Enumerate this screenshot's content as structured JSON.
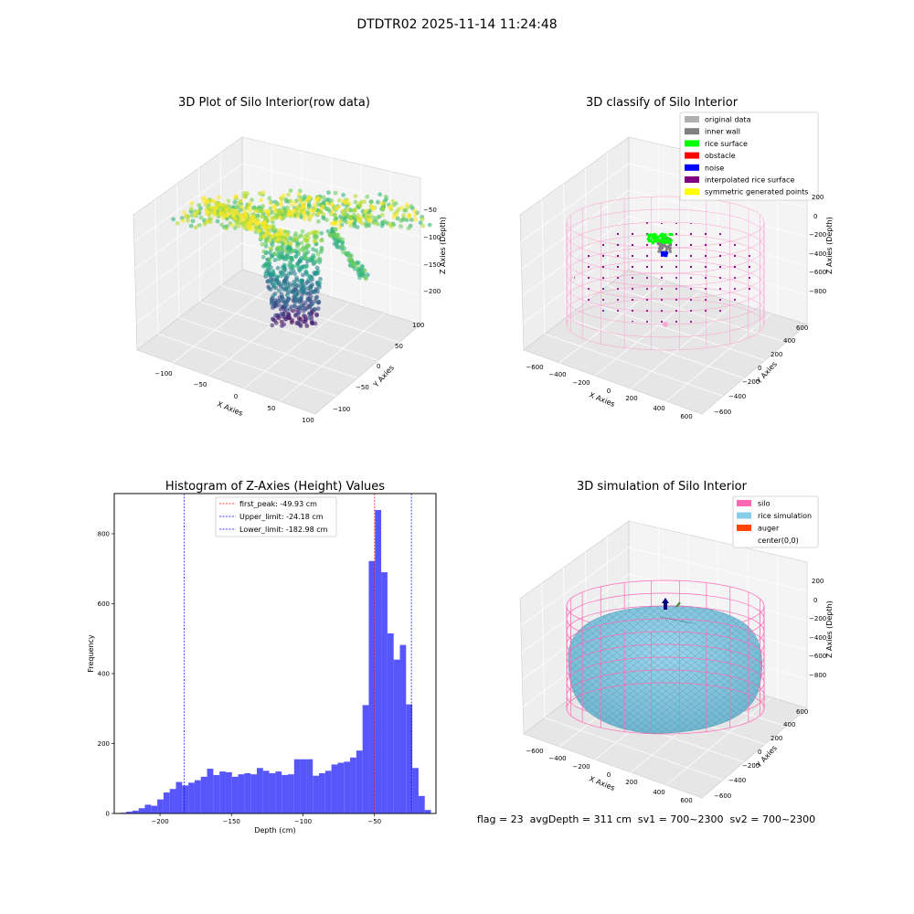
{
  "figure": {
    "title": "DTDTR02 2025-11-14 11:24:48",
    "status_line": "flag = 23  avgDepth = 311 cm  sv1 = 700~2300  sv2 = 700~2300"
  },
  "colors": {
    "viridis_low": "#440154",
    "viridis_mid": "#21918c",
    "viridis_high": "#fde725",
    "hist_bar": "#4d4dfa",
    "peak_line": "#ff0000",
    "limit_line": "#0000ff",
    "silo_pink": "#ff69b4",
    "rice_blue": "#87ceeb",
    "auger_orange": "#ff4500",
    "pane_gray": "#f2f2f2"
  },
  "chart_data": [
    {
      "type": "scatter",
      "title": "3D Plot of Silo Interior(row data)",
      "xlabel": "X Axies",
      "ylabel": "Y Axies",
      "zlabel": "Z Axies (Depth)",
      "xticks": [
        "−100",
        "−50",
        "0",
        "50",
        "100"
      ],
      "yticks": [
        "100",
        "50",
        "0",
        "−50",
        "−100"
      ],
      "zticks": [
        "−50",
        "−100",
        "−150",
        "−200"
      ],
      "xlim": [
        -130,
        110
      ],
      "ylim": [
        -120,
        110
      ],
      "zlim": [
        -230,
        -10
      ],
      "colormap": "viridis",
      "description_values": {
        "x_range": [
          -110,
          100
        ],
        "y_range": [
          -90,
          80
        ],
        "z_range": [
          -225,
          -15
        ]
      }
    },
    {
      "type": "scatter",
      "title": "3D classify of Silo Interior",
      "xlabel": "X Axies",
      "ylabel": "Y Axies",
      "zlabel": "Z Axies (Depth)",
      "xticks": [
        "−600",
        "−400",
        "−200",
        "0",
        "200",
        "400",
        "600"
      ],
      "yticks": [
        "600",
        "400",
        "200",
        "0",
        "−200",
        "−400",
        "−600"
      ],
      "zticks": [
        "200",
        "0",
        "−200",
        "−400",
        "−600",
        "−800"
      ],
      "legend": [
        {
          "label": "original data",
          "color": "#b0b0b0"
        },
        {
          "label": "inner wall",
          "color": "#808080"
        },
        {
          "label": "rice surface",
          "color": "#00ff00"
        },
        {
          "label": "obstacle",
          "color": "#ff0000"
        },
        {
          "label": "noise",
          "color": "#0000ff"
        },
        {
          "label": "interpolated rice surface",
          "color": "#800080"
        },
        {
          "label": "symmetric generated points",
          "color": "#ffff00"
        }
      ]
    },
    {
      "type": "bar",
      "title": "Histogram of Z-Axies (Height) Values",
      "xlabel": "Depth (cm)",
      "ylabel": "Frequency",
      "xlim": [
        -232,
        -7
      ],
      "ylim": [
        0,
        915
      ],
      "xticks": [
        -200,
        -150,
        -100,
        -50
      ],
      "yticks": [
        0,
        200,
        400,
        600,
        800
      ],
      "bin_start": -228,
      "bin_width": 4.35,
      "values": [
        2,
        5,
        8,
        15,
        25,
        22,
        40,
        60,
        70,
        90,
        80,
        88,
        95,
        105,
        128,
        110,
        120,
        118,
        105,
        112,
        115,
        112,
        130,
        122,
        115,
        120,
        110,
        112,
        155,
        155,
        155,
        108,
        115,
        122,
        140,
        145,
        148,
        160,
        180,
        310,
        722,
        868,
        690,
        515,
        440,
        482,
        312,
        130,
        50,
        10
      ],
      "vlines": [
        {
          "label": "first_peak: -49.93 cm",
          "x": -49.93,
          "color": "#ff0000"
        },
        {
          "label": "Upper_limit: -24.18 cm",
          "x": -24.18,
          "color": "#0000ff"
        },
        {
          "label": "Lower_limit: -182.98 cm",
          "x": -182.98,
          "color": "#0000ff"
        }
      ]
    },
    {
      "type": "surface",
      "title": "3D simulation of Silo Interior",
      "xlabel": "X Axies",
      "ylabel": "Y Axies",
      "zlabel": "Z Axies (Depth)",
      "xticks": [
        "−600",
        "−400",
        "−200",
        "0",
        "200",
        "400",
        "600"
      ],
      "yticks": [
        "600",
        "400",
        "200",
        "0",
        "−200",
        "−400",
        "−600"
      ],
      "zticks": [
        "200",
        "0",
        "−200",
        "−400",
        "−600",
        "−800"
      ],
      "legend": [
        {
          "label": "silo",
          "color": "#ff69b4"
        },
        {
          "label": "rice simulation",
          "color": "#87ceeb"
        },
        {
          "label": "auger",
          "color": "#ff4500"
        },
        {
          "label": "center(0,0)",
          "color": ""
        }
      ]
    }
  ]
}
